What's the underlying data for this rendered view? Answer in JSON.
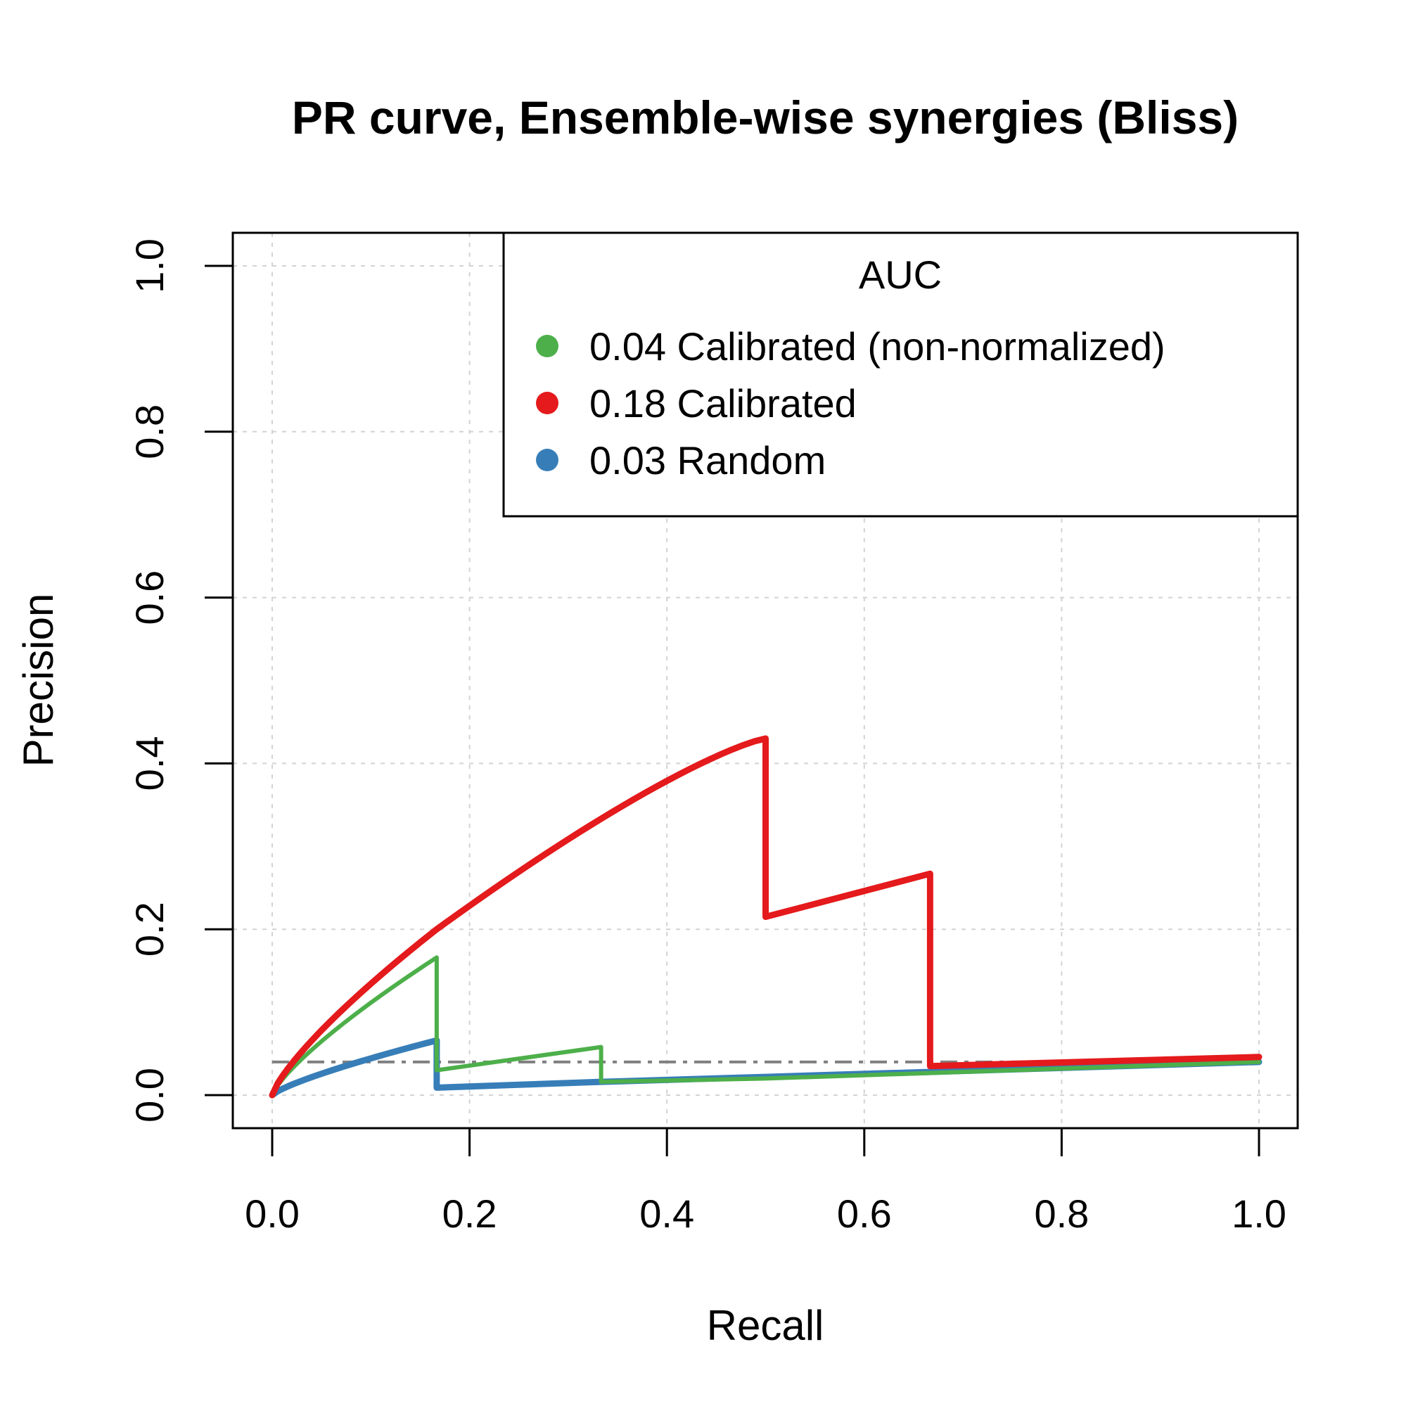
{
  "chart_data": {
    "type": "line",
    "title": "PR curve, Ensemble-wise synergies (Bliss)",
    "xlabel": "Recall",
    "ylabel": "Precision",
    "xlim": [
      0,
      1
    ],
    "ylim": [
      0,
      1
    ],
    "x_ticks": [
      "0.0",
      "0.2",
      "0.4",
      "0.6",
      "0.8",
      "1.0"
    ],
    "y_ticks": [
      "0.0",
      "0.2",
      "0.4",
      "0.6",
      "0.8",
      "1.0"
    ],
    "grid": true,
    "legend": {
      "title": "AUC",
      "position": "top-right",
      "entries": [
        {
          "label": "0.04 Calibrated (non-normalized)",
          "color": "#4DAF4A"
        },
        {
          "label": "0.18 Calibrated",
          "color": "#E41A1C"
        },
        {
          "label": "0.03 Random",
          "color": "#377EB8"
        }
      ]
    },
    "baseline": {
      "y": 0.04,
      "style": "dashdot",
      "color": "#808080"
    },
    "series": [
      {
        "label": "0.18 Calibrated",
        "color": "#E41A1C",
        "points": [
          [
            0,
            0
          ],
          [
            0.1667,
            0.2
          ],
          [
            0.5,
            0.43
          ],
          [
            0.5,
            0.215
          ],
          [
            0.6667,
            0.267
          ],
          [
            0.6667,
            0.035
          ],
          [
            1.0,
            0.046
          ]
        ]
      },
      {
        "label": "0.04 Calibrated (non-normalized)",
        "color": "#4DAF4A",
        "points": [
          [
            0,
            0
          ],
          [
            0.1667,
            0.166
          ],
          [
            0.1667,
            0.03
          ],
          [
            0.3333,
            0.058
          ],
          [
            0.3333,
            0.016
          ],
          [
            0.5,
            0.02
          ],
          [
            1.0,
            0.04
          ]
        ]
      },
      {
        "label": "0.03 Random",
        "color": "#377EB8",
        "points": [
          [
            0,
            0
          ],
          [
            0.1667,
            0.066
          ],
          [
            0.1667,
            0.009
          ],
          [
            0.3333,
            0.016
          ],
          [
            0.5,
            0.022
          ],
          [
            1.0,
            0.04
          ]
        ]
      }
    ]
  }
}
